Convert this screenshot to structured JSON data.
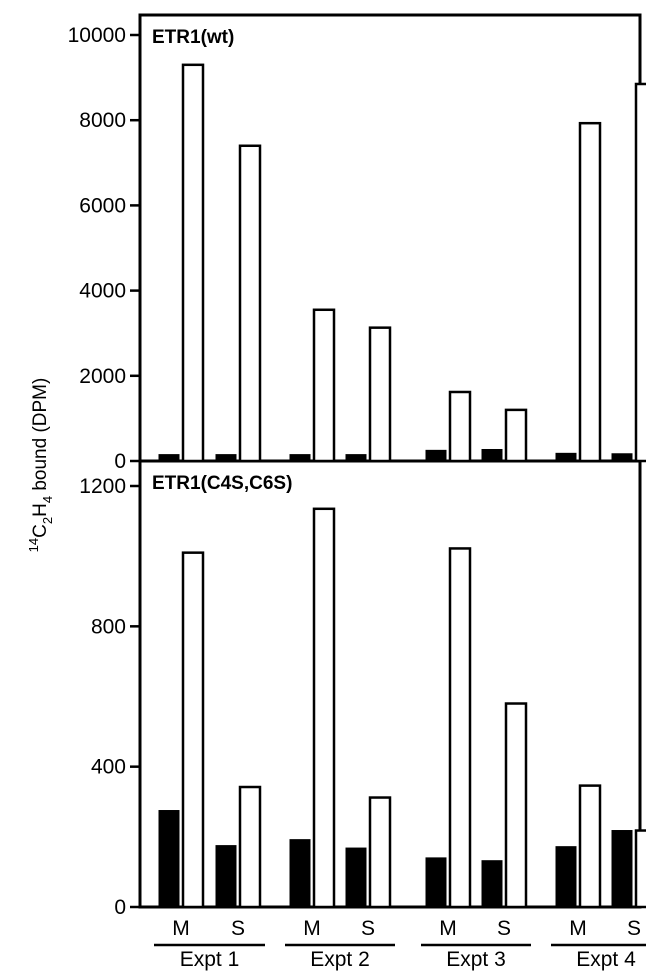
{
  "chart_data": {
    "type": "bar",
    "ylabel_parts": [
      "14",
      "C",
      "2",
      "H",
      "4",
      " bound (DPM)"
    ],
    "x_categories": [
      "M",
      "S",
      "M",
      "S",
      "M",
      "S",
      "M",
      "S"
    ],
    "groups": [
      "Expt 1",
      "Expt 2",
      "Expt 3",
      "Expt 4"
    ],
    "bar_styles": {
      "filled": "#000000",
      "open": "#ffffff",
      "stroke": "#000000"
    },
    "panels": [
      {
        "title": "ETR1(wt)",
        "ylim": [
          0,
          10000
        ],
        "yticks": [
          0,
          2000,
          4000,
          6000,
          8000,
          10000
        ],
        "series": [
          {
            "style": "filled",
            "values": [
              150,
              150,
              150,
              150,
              250,
              270,
              180,
              170
            ]
          },
          {
            "style": "open",
            "values": [
              9300,
              7400,
              3550,
              3130,
              1620,
              1200,
              7930,
              8850
            ]
          }
        ]
      },
      {
        "title": "ETR1(C4S,C6S)",
        "ylim": [
          0,
          1200
        ],
        "yticks": [
          0,
          400,
          800,
          1200
        ],
        "series": [
          {
            "style": "filled",
            "values": [
              275,
              175,
              192,
              168,
              140,
              132,
              172,
              218
            ]
          },
          {
            "style": "open",
            "values": [
              1010,
              342,
              1135,
              312,
              1022,
              580,
              346,
              218
            ]
          }
        ]
      }
    ]
  }
}
